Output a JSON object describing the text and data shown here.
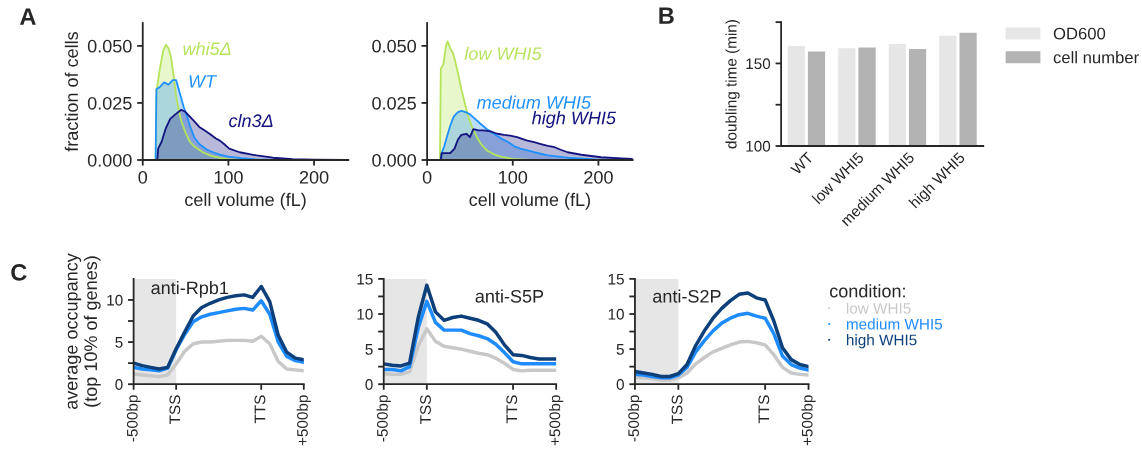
{
  "chart_data": [
    {
      "type": "area",
      "xlabel": "cell volume (fL)",
      "ylabel": "fraction of cells",
      "annotations": [
        "A"
      ],
      "xlim": [
        0,
        240
      ],
      "ylim": [
        0,
        0.06
      ],
      "xticks": [
        0,
        100,
        200
      ],
      "yticks": [
        {
          "value": 0,
          "label": "0.000"
        },
        {
          "value": 0.025,
          "label": "0.025"
        },
        {
          "value": 0.05,
          "label": "0.050"
        }
      ],
      "series": [
        {
          "name": "whi5Δ",
          "color": "#b5e35a",
          "x": [
            15,
            16,
            20,
            24,
            27,
            30,
            33,
            36,
            39,
            42,
            45,
            50,
            55,
            60,
            70,
            80,
            90,
            100,
            120,
            150,
            240
          ],
          "values": [
            0,
            0.03,
            0.04,
            0.048,
            0.0505,
            0.049,
            0.045,
            0.037,
            0.028,
            0.022,
            0.017,
            0.012,
            0.008,
            0.006,
            0.0034,
            0.0018,
            0.0009,
            0.0004,
            0.0001,
            0,
            0
          ]
        },
        {
          "name": "WT",
          "color": "#1e90ff",
          "x": [
            15,
            16,
            20,
            25,
            30,
            35,
            39,
            42,
            45,
            48,
            51,
            55,
            60,
            66,
            75,
            82,
            90,
            100,
            115,
            130,
            150,
            175,
            240
          ],
          "values": [
            0,
            0.031,
            0.032,
            0.034,
            0.033,
            0.035,
            0.035,
            0.031,
            0.027,
            0.023,
            0.02,
            0.015,
            0.01,
            0.007,
            0.0045,
            0.0034,
            0.0024,
            0.0015,
            0.0008,
            0.0004,
            0.0002,
            0.0001,
            0
          ]
        },
        {
          "name": "cln3Δ",
          "color": "#141480",
          "x": [
            17,
            18,
            22,
            27,
            32,
            38,
            45,
            50,
            55,
            60,
            66,
            72,
            78,
            85,
            90,
            95,
            101,
            113,
            133,
            152,
            175,
            200,
            238
          ],
          "values": [
            0,
            0.005,
            0.008,
            0.014,
            0.018,
            0.02,
            0.022,
            0.021,
            0.019,
            0.017,
            0.0145,
            0.013,
            0.0115,
            0.0095,
            0.0085,
            0.007,
            0.005,
            0.0034,
            0.002,
            0.001,
            0.0004,
            0.0002,
            0
          ]
        }
      ]
    },
    {
      "type": "area",
      "xlabel": "cell volume (fL)",
      "xlim": [
        0,
        240
      ],
      "ylim": [
        0,
        0.06
      ],
      "xticks": [
        0,
        100,
        200
      ],
      "yticks": [
        {
          "value": 0,
          "label": "0.000"
        },
        {
          "value": 0.025,
          "label": "0.025"
        },
        {
          "value": 0.05,
          "label": "0.050"
        }
      ],
      "series": [
        {
          "name": "low WHI5",
          "color": "#b5e35a",
          "x": [
            15,
            16,
            19,
            22,
            24,
            27,
            30,
            33,
            36,
            40,
            44,
            48,
            52,
            58,
            64,
            70,
            78,
            86,
            100,
            120,
            150,
            240
          ],
          "values": [
            0,
            0.04,
            0.042,
            0.05,
            0.052,
            0.049,
            0.047,
            0.043,
            0.038,
            0.031,
            0.025,
            0.019,
            0.015,
            0.01,
            0.0065,
            0.0041,
            0.0025,
            0.0015,
            0.0005,
            0.0001,
            0,
            0
          ]
        },
        {
          "name": "medium WHI5",
          "color": "#1e90ff",
          "x": [
            16,
            17,
            20,
            23,
            27,
            31,
            36,
            40,
            45,
            50,
            56,
            62,
            70,
            78,
            86,
            94,
            102,
            109,
            125,
            141,
            164,
            196,
            240
          ],
          "values": [
            0,
            0.003,
            0.006,
            0.01,
            0.015,
            0.019,
            0.021,
            0.0215,
            0.021,
            0.02,
            0.018,
            0.016,
            0.0135,
            0.0115,
            0.0095,
            0.008,
            0.006,
            0.005,
            0.0034,
            0.002,
            0.001,
            0.0003,
            0
          ]
        },
        {
          "name": "high WHI5",
          "color": "#141480",
          "x": [
            16,
            17,
            22,
            27,
            32,
            36,
            40,
            46,
            50,
            54,
            60,
            66,
            74,
            82,
            90,
            97,
            105,
            117,
            125,
            133,
            141,
            149,
            156,
            164,
            180,
            203,
            227,
            240
          ],
          "values": [
            0,
            0.003,
            0.003,
            0.003,
            0.005,
            0.009,
            0.011,
            0.0115,
            0.01,
            0.0135,
            0.013,
            0.013,
            0.0125,
            0.0115,
            0.011,
            0.0107,
            0.01,
            0.0085,
            0.0078,
            0.007,
            0.0062,
            0.0056,
            0.0045,
            0.0034,
            0.0023,
            0.0012,
            0.0007,
            0.0005
          ]
        }
      ]
    },
    {
      "type": "bar",
      "ylabel": "doubling time (min)",
      "annotations": [
        "B"
      ],
      "categories": [
        "WT",
        "low WHI5",
        "medium WHI5",
        "high WHI5"
      ],
      "ylim": [
        100,
        175
      ],
      "yticks": [
        100,
        {
          "value": 125,
          "label": null
        },
        150,
        {
          "value": 175,
          "label": null
        }
      ],
      "legend": "right",
      "series": [
        {
          "name": "OD600",
          "color": "#e6e6e6",
          "values": [
            161,
            159.6,
            162.2,
            167.2
          ]
        },
        {
          "name": "cell number",
          "color": "#b3b3b3",
          "values": [
            157.6,
            160,
            159.2,
            169
          ]
        }
      ]
    },
    {
      "type": "line",
      "ylabel": "average occupancy\n(top 10% of genes)",
      "annotations": [
        "C",
        "anti-Rpb1"
      ],
      "ylim": [
        0,
        12.5
      ],
      "categories": [
        "-500bp",
        null,
        null,
        null,
        null,
        "TSS",
        null,
        null,
        null,
        null,
        null,
        null,
        null,
        null,
        null,
        "TTS",
        null,
        null,
        null,
        null,
        "+500bp"
      ],
      "yticks": [
        0,
        {
          "value": 2.5,
          "label": null
        },
        5,
        {
          "value": 7.5,
          "label": null
        },
        10
      ],
      "bands": [
        {
          "axis": "x",
          "from": "-500bp",
          "to": "TSS",
          "color": "#e6e6e6"
        }
      ],
      "series": [
        {
          "color": "#c8c8c8",
          "values": [
            1.2,
            1.1,
            1.0,
            0.9,
            1.1,
            2.4,
            3.9,
            4.8,
            5.0,
            5.0,
            5.1,
            5.2,
            5.2,
            5.2,
            5.1,
            5.7,
            4.8,
            2.7,
            1.8,
            1.7,
            1.6
          ]
        },
        {
          "color": "#1e8cff",
          "values": [
            2.0,
            1.8,
            1.7,
            1.6,
            1.9,
            4.1,
            5.9,
            7.4,
            8.0,
            8.3,
            8.5,
            8.7,
            8.9,
            9.0,
            8.8,
            9.9,
            8.3,
            5.0,
            3.3,
            2.8,
            2.6
          ]
        },
        {
          "color": "#0d3f7a",
          "values": [
            2.5,
            2.2,
            2.0,
            1.8,
            2.0,
            4.2,
            6.2,
            8.1,
            9.1,
            9.6,
            10.0,
            10.3,
            10.5,
            10.6,
            10.3,
            11.6,
            9.8,
            5.8,
            3.8,
            3.1,
            2.9
          ]
        }
      ]
    },
    {
      "type": "line",
      "annotations": [
        "anti-S5P"
      ],
      "ylim": [
        0,
        15
      ],
      "categories": [
        "-500bp",
        null,
        null,
        null,
        null,
        "TSS",
        null,
        null,
        null,
        null,
        null,
        null,
        null,
        null,
        null,
        "TTS",
        null,
        null,
        null,
        null,
        "+500bp"
      ],
      "yticks": [
        0,
        {
          "value": 2.5,
          "label": null
        },
        5,
        {
          "value": 7.5,
          "label": null
        },
        10,
        {
          "value": 12.5,
          "label": null
        },
        15
      ],
      "bands": [
        {
          "axis": "x",
          "from": "-500bp",
          "to": "TSS",
          "color": "#e6e6e6"
        }
      ],
      "series": [
        {
          "color": "#c8c8c8",
          "values": [
            1.5,
            1.4,
            1.4,
            1.8,
            5.4,
            7.9,
            6.1,
            5.4,
            5.2,
            5.0,
            4.7,
            4.4,
            4.2,
            3.7,
            3.0,
            2.1,
            1.9,
            2.0,
            2.0,
            2.0,
            2.0
          ]
        },
        {
          "color": "#1e8cff",
          "values": [
            2.1,
            2.1,
            1.9,
            2.5,
            8.0,
            11.8,
            8.8,
            7.7,
            7.7,
            7.7,
            7.2,
            6.9,
            6.5,
            5.7,
            4.5,
            3.2,
            2.9,
            2.9,
            2.9,
            2.9,
            2.9
          ]
        },
        {
          "color": "#0d3f7a",
          "values": [
            2.9,
            2.7,
            2.6,
            3.0,
            9.5,
            14.1,
            10.3,
            9.1,
            9.5,
            9.7,
            9.4,
            9.1,
            8.6,
            7.4,
            5.6,
            4.2,
            4.1,
            3.8,
            3.6,
            3.6,
            3.6
          ]
        }
      ]
    },
    {
      "type": "line",
      "annotations": [
        "anti-S2P"
      ],
      "legend": "right",
      "legend_title": "condition:",
      "ylim": [
        0,
        15
      ],
      "categories": [
        "-500bp",
        null,
        null,
        null,
        null,
        "TSS",
        null,
        null,
        null,
        null,
        null,
        null,
        null,
        null,
        null,
        "TTS",
        null,
        null,
        null,
        null,
        "+500bp"
      ],
      "yticks": [
        0,
        {
          "value": 2.5,
          "label": null
        },
        5,
        {
          "value": 7.5,
          "label": null
        },
        10,
        {
          "value": 12.5,
          "label": null
        },
        15
      ],
      "bands": [
        {
          "axis": "x",
          "from": "-500bp",
          "to": "TSS",
          "color": "#e6e6e6"
        }
      ],
      "series": [
        {
          "name": "low WHI5",
          "color": "#c8c8c8",
          "values": [
            1.0,
            0.9,
            0.8,
            0.6,
            0.6,
            0.9,
            1.6,
            2.9,
            3.8,
            4.6,
            5.1,
            5.6,
            6.0,
            6.1,
            5.9,
            5.6,
            4.2,
            2.4,
            1.6,
            1.4,
            1.3
          ]
        },
        {
          "name": "medium WHI5",
          "color": "#1e8cff",
          "values": [
            1.4,
            1.3,
            1.1,
            0.9,
            0.9,
            1.3,
            2.4,
            4.6,
            6.2,
            7.6,
            8.7,
            9.4,
            9.9,
            10.1,
            9.7,
            9.4,
            7.2,
            4.0,
            2.8,
            2.3,
            2.0
          ]
        },
        {
          "name": "high WHI5",
          "color": "#0d3f7a",
          "values": [
            1.8,
            1.6,
            1.4,
            1.1,
            1.1,
            1.5,
            2.8,
            5.5,
            7.6,
            9.4,
            10.8,
            11.9,
            12.8,
            13.0,
            12.3,
            12.0,
            9.0,
            5.2,
            3.5,
            2.8,
            2.5
          ]
        }
      ]
    }
  ]
}
